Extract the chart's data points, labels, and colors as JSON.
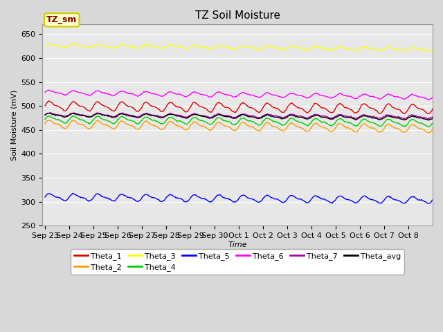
{
  "title": "TZ Soil Moisture",
  "xlabel": "Time",
  "ylabel": "Soil Moisture (mV)",
  "ylim": [
    250,
    670
  ],
  "yticks": [
    250,
    300,
    350,
    400,
    450,
    500,
    550,
    600,
    650
  ],
  "background_color": "#d8d8d8",
  "plot_bg": "#e8e8e8",
  "series": {
    "Theta_1": {
      "color": "#dd0000",
      "base": 500,
      "trend": -0.4,
      "amp": 8,
      "freq": 1.0
    },
    "Theta_2": {
      "color": "#ff9900",
      "base": 462,
      "trend": -0.6,
      "amp": 7,
      "freq": 1.0
    },
    "Theta_3": {
      "color": "#ffff00",
      "base": 626,
      "trend": -0.5,
      "amp": 3,
      "freq": 1.0
    },
    "Theta_4": {
      "color": "#00cc00",
      "base": 472,
      "trend": -0.5,
      "amp": 6,
      "freq": 1.0
    },
    "Theta_5": {
      "color": "#0000ff",
      "base": 310,
      "trend": -0.4,
      "amp": 6,
      "freq": 1.0
    },
    "Theta_6": {
      "color": "#ff00ff",
      "base": 528,
      "trend": -0.6,
      "amp": 4,
      "freq": 1.0
    },
    "Theta_7": {
      "color": "#aa00aa",
      "base": 482,
      "trend": -0.3,
      "amp": 3,
      "freq": 1.0
    },
    "Theta_avg": {
      "color": "#000000",
      "base": 481,
      "trend": -0.4,
      "amp": 3,
      "freq": 1.0
    }
  },
  "n_points": 480,
  "days": 16,
  "label_box_facecolor": "#ffffcc",
  "label_box_edge": "#cccc00",
  "label_text": "TZ_sm",
  "label_text_color": "#880000",
  "x_tick_labels": [
    "Sep 23",
    "Sep 24",
    "Sep 25",
    "Sep 26",
    "Sep 27",
    "Sep 28",
    "Sep 29",
    "Sep 30",
    "Oct 1",
    "Oct 2",
    "Oct 3",
    "Oct 4",
    "Oct 5",
    "Oct 6",
    "Oct 7",
    "Oct 8"
  ],
  "legend_row1": [
    "Theta_1",
    "Theta_2",
    "Theta_3",
    "Theta_4",
    "Theta_5",
    "Theta_6"
  ],
  "legend_row2": [
    "Theta_7",
    "Theta_avg"
  ],
  "grid_color": "#ffffff",
  "title_fontsize": 11,
  "axis_label_fontsize": 8,
  "tick_fontsize": 8
}
